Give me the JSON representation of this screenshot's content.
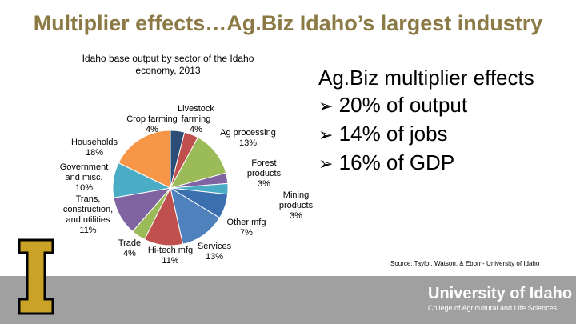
{
  "title": "Multiplier effects…Ag.Biz Idaho’s largest industry",
  "chart_data": {
    "type": "pie",
    "subtitle": "Idaho base output by sector of the Idaho economy, 2013",
    "categories": [
      "Crop farming",
      "Livestock farming",
      "Ag processing",
      "Forest products",
      "Mining products",
      "Other mfg",
      "Services",
      "Hi-tech mfg",
      "Trade",
      "Trans, construction, and utilities",
      "Government and misc.",
      "Households"
    ],
    "values": [
      4,
      4,
      13,
      3,
      3,
      7,
      13,
      11,
      4,
      11,
      10,
      18
    ],
    "value_labels": [
      "4%",
      "4%",
      "13%",
      "3%",
      "3%",
      "7%",
      "13%",
      "11%",
      "4%",
      "11%",
      "10%",
      "18%"
    ],
    "colors": [
      "#2c4d75",
      "#c0504d",
      "#9bbb59",
      "#8064a2",
      "#4bacc6",
      "#3a6fb0",
      "#4f81bd",
      "#c0504d",
      "#9bbb59",
      "#8064a2",
      "#4bacc6",
      "#f79646"
    ]
  },
  "side": {
    "heading": "Ag.Biz multiplier effects",
    "bullets": [
      "20% of output",
      "14% of jobs",
      "16% of GDP"
    ]
  },
  "source": "Source: Taylor, Watson, & Eborn- University of Idaho",
  "footer": {
    "university": "University of Idaho",
    "college": "College of Agricultural and Life Sciences"
  }
}
